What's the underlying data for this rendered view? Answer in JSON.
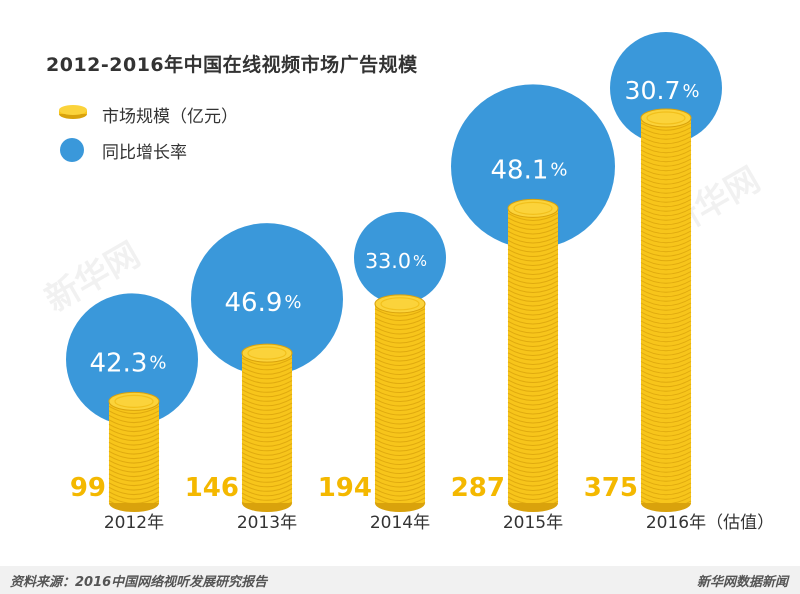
{
  "chart_data": {
    "type": "bar",
    "title": "2012-2016年中国在线视频市场广告规模",
    "categories": [
      "2012年",
      "2013年",
      "2014年",
      "2015年",
      "2016年（估值）"
    ],
    "series": [
      {
        "name": "市场规模（亿元）",
        "values": [
          99,
          146,
          194,
          287,
          375
        ]
      },
      {
        "name": "同比增长率",
        "values": [
          42.3,
          46.9,
          33.0,
          48.1,
          30.7
        ]
      }
    ],
    "value_labels": [
      "99",
      "146",
      "194",
      "287",
      "375"
    ],
    "rate_labels": [
      "42.3",
      "46.9",
      "33.0",
      "48.1",
      "30.7"
    ],
    "percent_sign": "%",
    "colors": {
      "coin": "#f7c51b",
      "coin_edge": "#d9a20c",
      "bubble": "#3a98da",
      "value_label": "#f4b800"
    }
  },
  "footer": {
    "source": "资料来源：2016中国网络视听发展研究报告",
    "brand": "新华网数据新闻"
  },
  "watermark": "新华网"
}
